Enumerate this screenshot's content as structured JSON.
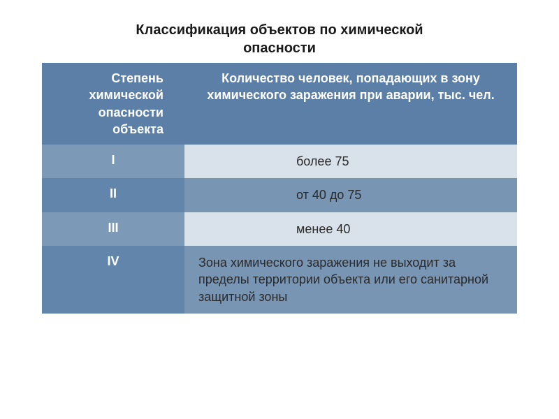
{
  "title": "Классификация объектов по химической\nопасности",
  "table": {
    "header": {
      "col1_lines": [
        "Степень",
        "химической",
        "опасности",
        "объекта"
      ],
      "col2_lines": [
        "Количество человек,",
        "попадающих в зону",
        "химического заражения при",
        "аварии, тыс. чел."
      ]
    },
    "rows": [
      {
        "degree": "I",
        "value": "более 75",
        "multiline": false
      },
      {
        "degree": "II",
        "value": "от 40 до 75",
        "multiline": false
      },
      {
        "degree": "III",
        "value": "менее 40",
        "multiline": false
      },
      {
        "degree": "IV",
        "value": "Зона химического заражения не выходит за пределы территории объекта или его санитарной защитной зоны",
        "multiline": true
      }
    ]
  },
  "colors": {
    "header_bg": "#5b7fa6",
    "stripe_light": "#d9e1ea",
    "stripe_dark": "#7995b4",
    "col1_stripe_light": "#7d99b8",
    "col1_stripe_dark": "#6185ab",
    "text_dark": "#2a2a2a",
    "text_light": "#ffffff"
  }
}
